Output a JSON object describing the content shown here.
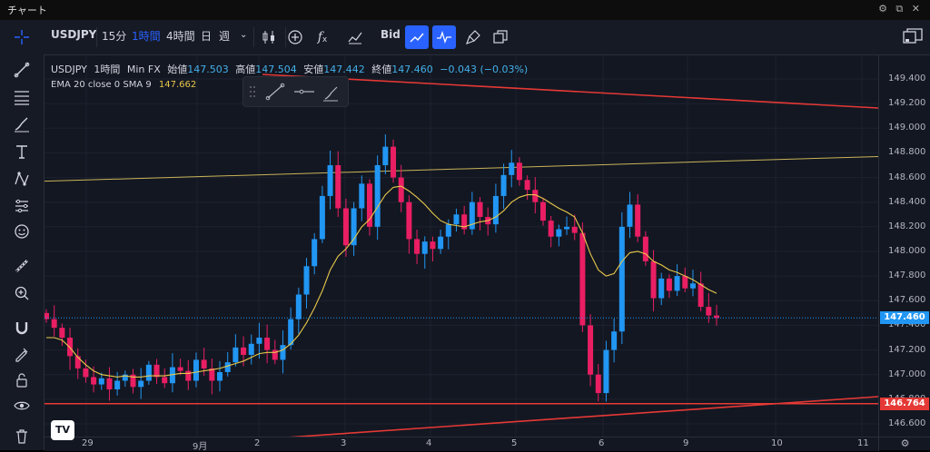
{
  "window": {
    "title": "チャート",
    "controls_text": "⚙ ⧉ ✕"
  },
  "toolbar": {
    "symbol": "USDJPY",
    "intervals": [
      "15分",
      "1時間",
      "4時間",
      "日",
      "週"
    ],
    "selected_interval": "1時間",
    "price_side": "Bid"
  },
  "legend": {
    "symbol": "USDJPY",
    "interval": "1時間",
    "source": "Min FX",
    "open_label": "始値",
    "open": "147.503",
    "high_label": "高値",
    "high": "147.504",
    "low_label": "安値",
    "low": "147.442",
    "close_label": "終値",
    "close": "147.460",
    "change": "−0.043 (−0.03%)"
  },
  "indicator": {
    "name": "EMA 20 close 0 SMA 9",
    "value": "147.662"
  },
  "price_axis": {
    "ticks": [
      "149.400",
      "149.200",
      "149.000",
      "148.800",
      "148.600",
      "148.400",
      "148.200",
      "148.000",
      "147.800",
      "147.600",
      "147.400",
      "147.200",
      "147.000",
      "146.800",
      "146.600"
    ],
    "current_price": "147.460",
    "line_price": "146.764"
  },
  "time_axis": {
    "ticks": [
      "29",
      "9月",
      "2",
      "3",
      "4",
      "5",
      "6",
      "9",
      "10",
      "11"
    ]
  },
  "colors": {
    "up": "#2196f3",
    "down": "#e91e63",
    "ema": "#e8c84a",
    "trendline": "#e53935",
    "accent": "#2962ff",
    "background": "#131722"
  },
  "chart_data": {
    "type": "candlestick",
    "symbol": "USDJPY",
    "interval": "1h",
    "ylim": [
      146.54,
      149.47
    ],
    "x_ticks": [
      "29",
      "9月",
      "2",
      "3",
      "4",
      "5",
      "6",
      "9",
      "10",
      "11"
    ],
    "y_ticks": [
      146.6,
      146.8,
      147.0,
      147.2,
      147.4,
      147.6,
      147.8,
      148.0,
      148.2,
      148.4,
      148.6,
      148.8,
      149.0,
      149.2,
      149.4
    ],
    "close_path": [
      147.45,
      147.38,
      147.3,
      147.15,
      147.05,
      146.98,
      146.92,
      146.97,
      146.88,
      146.95,
      147.0,
      146.9,
      146.95,
      147.08,
      146.98,
      146.93,
      147.06,
      147.03,
      146.95,
      147.12,
      147.05,
      146.95,
      147.02,
      147.1,
      147.22,
      147.16,
      147.25,
      147.3,
      147.2,
      147.12,
      147.24,
      147.45,
      147.65,
      147.88,
      148.1,
      148.45,
      148.7,
      148.35,
      148.05,
      148.35,
      148.55,
      148.2,
      148.7,
      148.85,
      148.6,
      148.4,
      148.1,
      147.98,
      148.08,
      148.02,
      148.12,
      148.22,
      148.3,
      148.18,
      148.4,
      148.28,
      148.22,
      148.45,
      148.62,
      148.72,
      148.58,
      148.5,
      148.4,
      148.25,
      148.12,
      148.18,
      148.2,
      148.15,
      147.4,
      147.0,
      146.85,
      147.2,
      147.35,
      148.2,
      148.38,
      148.12,
      147.92,
      147.62,
      147.78,
      147.68,
      147.8,
      147.7,
      147.74,
      147.55,
      147.48,
      147.46
    ],
    "ema": [
      147.3,
      147.3,
      147.28,
      147.22,
      147.14,
      147.08,
      147.03,
      147.0,
      146.99,
      146.98,
      146.99,
      146.98,
      146.98,
      146.99,
      146.99,
      146.99,
      147.0,
      147.01,
      147.01,
      147.02,
      147.03,
      147.04,
      147.05,
      147.07,
      147.09,
      147.11,
      147.14,
      147.17,
      147.18,
      147.18,
      147.2,
      147.25,
      147.32,
      147.42,
      147.54,
      147.68,
      147.85,
      147.96,
      148.02,
      148.1,
      148.2,
      148.26,
      148.36,
      148.46,
      148.52,
      148.53,
      148.49,
      148.44,
      148.38,
      148.31,
      148.25,
      148.22,
      148.21,
      148.2,
      148.22,
      148.24,
      148.25,
      148.28,
      148.33,
      148.4,
      148.44,
      148.46,
      148.46,
      148.43,
      148.39,
      148.35,
      148.32,
      148.28,
      148.15,
      147.98,
      147.85,
      147.8,
      147.82,
      147.92,
      147.99,
      148.0,
      147.98,
      147.92,
      147.89,
      147.85,
      147.83,
      147.8,
      147.77,
      147.73,
      147.69,
      147.66
    ],
    "horizontal_line": 146.764,
    "current_price": 147.46
  }
}
